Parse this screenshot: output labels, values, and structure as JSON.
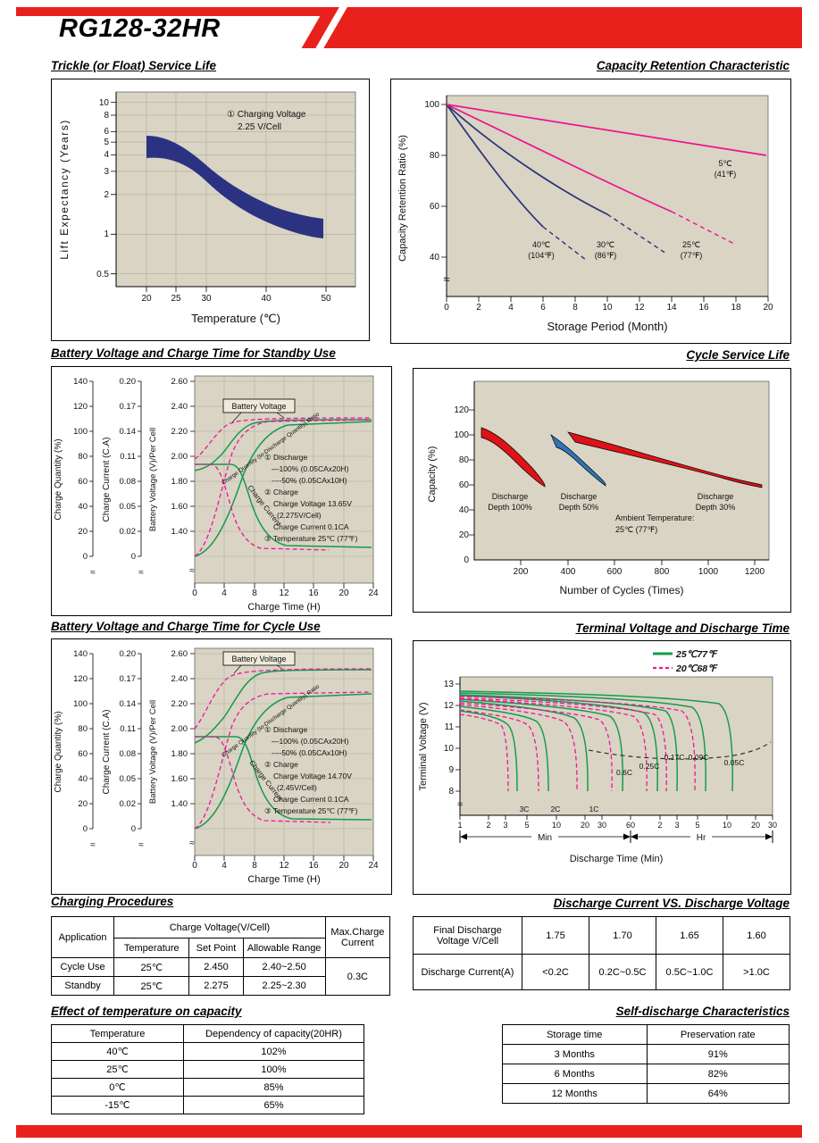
{
  "page": {
    "model": "RG128-32HR"
  },
  "colors": {
    "accent_red": "#e9211c",
    "plot_beige": "#d9d4c4",
    "navy": "#2b3282",
    "magenta": "#ed138e",
    "green": "#169a4e",
    "pink": "#f0149a",
    "band_red": "#dd1317",
    "band_blue": "#2e74b8"
  },
  "chart_data": [
    {
      "id": "trickle_float_service_life",
      "type": "area",
      "title": "Trickle (or Float) Service Life",
      "xlabel": "Temperature (℃)",
      "ylabel": "Lift  Expectancy (Years)",
      "xticks": [
        "20",
        "25",
        "30",
        "40",
        "50"
      ],
      "yticks": [
        "10",
        "8",
        "6",
        "5",
        "4",
        "3",
        "2",
        "1",
        "0.5"
      ],
      "yscale": "log",
      "annotation": [
        "① Charging Voltage",
        "2.25 V/Cell"
      ],
      "band": {
        "temperature_c": [
          20,
          25,
          30,
          35,
          40,
          45,
          50
        ],
        "years_upper": [
          5.6,
          5.2,
          3.6,
          2.6,
          2.0,
          1.6,
          1.3
        ],
        "years_lower": [
          3.8,
          3.3,
          2.2,
          1.55,
          1.2,
          1.0,
          0.9
        ]
      }
    },
    {
      "id": "capacity_retention",
      "type": "line",
      "title": "Capacity Retention Characteristic",
      "xlabel": "Storage Period (Month)",
      "ylabel": "Capacity Retention Ratio (%)",
      "xticks": [
        "0",
        "2",
        "4",
        "6",
        "8",
        "10",
        "12",
        "14",
        "16",
        "18",
        "20"
      ],
      "yticks": [
        "100",
        "80",
        "60",
        "40"
      ],
      "series": [
        {
          "name": "5℃ (41℉)",
          "color": "#ed138e",
          "points": [
            [
              0,
              100
            ],
            [
              20,
              80
            ]
          ]
        },
        {
          "name": "25℃ (77℉)",
          "color": "#ed138e",
          "points": [
            [
              0,
              100
            ],
            [
              7,
              78
            ],
            [
              14,
              58
            ]
          ],
          "dashed_extension": [
            [
              14,
              58
            ],
            [
              17.5,
              47
            ]
          ]
        },
        {
          "name": "30℃ (86℉)",
          "color": "#2b3282",
          "points": [
            [
              0,
              100
            ],
            [
              5,
              74
            ],
            [
              10,
              57
            ]
          ],
          "dashed_extension": [
            [
              10,
              57
            ],
            [
              13.5,
              44
            ]
          ]
        },
        {
          "name": "40℃ (104℉)",
          "color": "#2b3282",
          "points": [
            [
              0,
              100
            ],
            [
              3,
              70
            ],
            [
              6,
              52
            ]
          ],
          "dashed_extension": [
            [
              6,
              52
            ],
            [
              8.5,
              40
            ]
          ]
        }
      ],
      "series_labels": {
        "s5": [
          "5℃",
          "(41℉)"
        ],
        "s40": [
          "40℃",
          "(104℉)"
        ],
        "s30": [
          "30℃",
          "(86℉)"
        ],
        "s25": [
          "25℃",
          "(77℉)"
        ]
      }
    },
    {
      "id": "standby_use_charge",
      "type": "line",
      "title": "Battery Voltage and Charge Time for Standby Use",
      "xlabel": "Charge Time (H)",
      "xticks": [
        "0",
        "4",
        "8",
        "12",
        "16",
        "20",
        "24"
      ],
      "axes": [
        {
          "label": "Charge Quantity (%)",
          "ticks": [
            "140",
            "120",
            "100",
            "80",
            "60",
            "40",
            "20",
            "0"
          ]
        },
        {
          "label": "Charge Current (C.A)",
          "ticks": [
            "0.20",
            "0.17",
            "0.14",
            "0.11",
            "0.08",
            "0.05",
            "0.02",
            "0"
          ]
        },
        {
          "label": "Battery Voltage (V)/Per Cell",
          "ticks": [
            "2.60",
            "2.40",
            "2.20",
            "2.00",
            "1.80",
            "1.60",
            "1.40"
          ]
        }
      ],
      "curve_labels": [
        "Battery Voltage",
        "Charge Quantity (to-Discharge Quantity) Ratio",
        "Charge Current"
      ],
      "conditions": [
        "① Discharge",
        "—100% (0.05CAx20H)",
        "----50% (0.05CAx10H)",
        "② Charge",
        "Charge Voltage 13.65V",
        "(2.275V/Cell)",
        "Charge Current 0.1CA",
        "③ Temperature 25℃ (77℉)"
      ],
      "line_styles": {
        "solid_green": "after 100% discharge",
        "dashed_pink": "after 50% discharge"
      }
    },
    {
      "id": "cycle_service_life",
      "type": "area",
      "title": "Cycle Service Life",
      "xlabel": "Number of Cycles (Times)",
      "ylabel": "Capacity (%)",
      "xticks": [
        "200",
        "400",
        "600",
        "800",
        "1000",
        "1200"
      ],
      "yticks": [
        "120",
        "100",
        "80",
        "60",
        "40",
        "20",
        "0"
      ],
      "bands": [
        {
          "name": "Discharge Depth 100%",
          "color": "#dd1317",
          "points": [
            [
              25,
              105
            ],
            [
              150,
              85
            ],
            [
              300,
              60
            ]
          ]
        },
        {
          "name": "Discharge Depth 50%",
          "color": "#2e74b8",
          "points": [
            [
              330,
              100
            ],
            [
              450,
              80
            ],
            [
              560,
              60
            ]
          ]
        },
        {
          "name": "Discharge Depth 30%",
          "color": "#dd1317",
          "points": [
            [
              400,
              102
            ],
            [
              800,
              80
            ],
            [
              1230,
              60
            ]
          ]
        }
      ],
      "labels": {
        "d100": [
          "Discharge",
          "Depth 100%"
        ],
        "d50": [
          "Discharge",
          "Depth 50%"
        ],
        "d30": [
          "Discharge",
          "Depth 30%"
        ],
        "ambient": [
          "Ambient Temperature:",
          "25℃ (77℉)"
        ]
      }
    },
    {
      "id": "cycle_use_charge",
      "type": "line",
      "title": "Battery Voltage and Charge Time for Cycle Use",
      "xlabel": "Charge Time (H)",
      "xticks": [
        "0",
        "4",
        "8",
        "12",
        "16",
        "20",
        "24"
      ],
      "axes": [
        {
          "label": "Charge Quantity (%)",
          "ticks": [
            "140",
            "120",
            "100",
            "80",
            "60",
            "40",
            "20",
            "0"
          ]
        },
        {
          "label": "Charge Current (C.A)",
          "ticks": [
            "0.20",
            "0.17",
            "0.14",
            "0.11",
            "0.08",
            "0.05",
            "0.02",
            "0"
          ]
        },
        {
          "label": "Battery Voltage (V)/Per Cell",
          "ticks": [
            "2.60",
            "2.40",
            "2.20",
            "2.00",
            "1.80",
            "1.60",
            "1.40"
          ]
        }
      ],
      "curve_labels": [
        "Battery Voltage",
        "Charge Quantity (to-Discharge Quantity) Ratio",
        "Charge Current"
      ],
      "conditions": [
        "① Discharge",
        "—100% (0.05CAx20H)",
        "----50% (0.05CAx10H)",
        "② Charge",
        "Charge Voltage 14.70V",
        "(2.45V/Cell)",
        "Charge Current 0.1CA",
        "③ Temperature 25℃ (77℉)"
      ],
      "line_styles": {
        "solid_green": "after 100% discharge",
        "dashed_pink": "after 50% discharge"
      }
    },
    {
      "id": "terminal_voltage_discharge_time",
      "type": "line",
      "title": "Terminal Voltage and Discharge Time",
      "xlabel": "Discharge Time (Min)",
      "ylabel": "Terminal Voltage (V)",
      "yticks": [
        "13",
        "12",
        "11",
        "10",
        "9",
        "8"
      ],
      "xticks_min": [
        "1",
        "2",
        "3",
        "5",
        "10",
        "20",
        "30",
        "60"
      ],
      "xticks_hr": [
        "2",
        "3",
        "5",
        "10",
        "20",
        "30"
      ],
      "segment_labels": [
        "Min",
        "Hr"
      ],
      "legend": [
        {
          "label": "25℃77℉",
          "color": "#169a4e",
          "style": "solid"
        },
        {
          "label": "20℃68℉",
          "color": "#f0149a",
          "style": "dashed"
        }
      ],
      "rate_labels": [
        "3C",
        "2C",
        "1C",
        "0.6C",
        "0.25C",
        "0.17C",
        "0.09C",
        "0.05C"
      ]
    }
  ],
  "tables": {
    "charging": {
      "title": "Charging Procedures",
      "application_header": "Application",
      "charge_voltage_header": "Charge Voltage(V/Cell)",
      "max_charge_header": [
        "Max.Charge",
        "Current"
      ],
      "sub_headers": [
        "Temperature",
        "Set Point",
        "Allowable Range"
      ],
      "rows": [
        {
          "application": "Cycle Use",
          "temperature": "25℃",
          "set_point": "2.450",
          "allowable_range": "2.40~2.50"
        },
        {
          "application": "Standby",
          "temperature": "25℃",
          "set_point": "2.275",
          "allowable_range": "2.25~2.30"
        }
      ],
      "max_charge_current": "0.3C"
    },
    "discharge": {
      "title": "Discharge Current VS. Discharge Voltage",
      "row1_header": [
        "Final Discharge",
        "Voltage V/Cell"
      ],
      "row1_values": [
        "1.75",
        "1.70",
        "1.65",
        "1.60"
      ],
      "row2_header": "Discharge Current(A)",
      "row2_values": [
        "<0.2C",
        "0.2C~0.5C",
        "0.5C~1.0C",
        ">1.0C"
      ]
    },
    "temp_capacity": {
      "title": "Effect of temperature on capacity",
      "headers": [
        "Temperature",
        "Dependency of capacity(20HR)"
      ],
      "rows": [
        [
          "40℃",
          "102%"
        ],
        [
          "25℃",
          "100%"
        ],
        [
          "0℃",
          "85%"
        ],
        [
          "-15℃",
          "65%"
        ]
      ]
    },
    "self_discharge": {
      "title": "Self-discharge Characteristics",
      "headers": [
        "Storage time",
        "Preservation rate"
      ],
      "rows": [
        [
          "3 Months",
          "91%"
        ],
        [
          "6 Months",
          "82%"
        ],
        [
          "12 Months",
          "64%"
        ]
      ]
    }
  }
}
